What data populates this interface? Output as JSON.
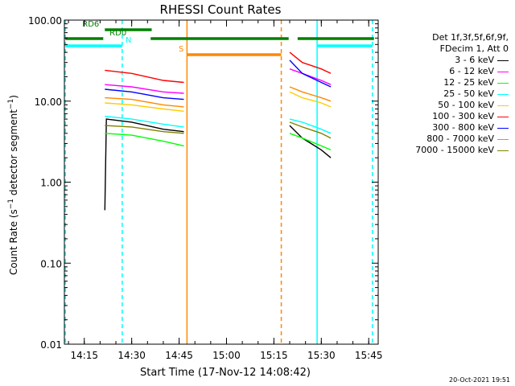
{
  "chart_data": {
    "type": "line",
    "title": "RHESSI Count Rates",
    "xlabel": "Start Time (17-Nov-12 14:08:42)",
    "ylabel": "Count Rate (s⁻¹ detector segment⁻¹)",
    "yscale": "log",
    "ylim": [
      0.01,
      100
    ],
    "xlim": [
      "14:08:42",
      "15:48:00"
    ],
    "x_ticks": [
      "14:15",
      "14:30",
      "14:45",
      "15:00",
      "15:15",
      "15:30",
      "15:45"
    ],
    "y_ticks": [
      "100.00",
      "10.00",
      "1.00",
      "0.10",
      "0.01"
    ],
    "legend_header": [
      "Det 1f,3f,5f,6f,9f,",
      "FDecim 1, Att 0"
    ],
    "legend_position": "right",
    "series": [
      {
        "name": "3 - 6 keV",
        "color": "#000000",
        "segments": [
          [
            [
              "14:21:30",
              0.45
            ],
            [
              "14:22:00",
              6.0
            ],
            [
              "14:30:00",
              5.5
            ],
            [
              "14:40:00",
              4.5
            ],
            [
              "14:46:30",
              4.2
            ]
          ],
          [
            [
              "15:20:00",
              5.0
            ],
            [
              "15:24:00",
              3.5
            ],
            [
              "15:30:00",
              2.5
            ],
            [
              "15:33:00",
              2.0
            ]
          ]
        ]
      },
      {
        "name": "6 - 12 keV",
        "color": "#ff00ff",
        "segments": [
          [
            [
              "14:21:30",
              16
            ],
            [
              "14:30:00",
              15
            ],
            [
              "14:40:00",
              13
            ],
            [
              "14:46:30",
              12.5
            ]
          ],
          [
            [
              "15:20:00",
              25
            ],
            [
              "15:24:00",
              22
            ],
            [
              "15:30:00",
              18
            ],
            [
              "15:33:00",
              16
            ]
          ]
        ]
      },
      {
        "name": "12 - 25 keV",
        "color": "#00ff00",
        "segments": [
          [
            [
              "14:21:30",
              4.0
            ],
            [
              "14:30:00",
              3.8
            ],
            [
              "14:40:00",
              3.2
            ],
            [
              "14:46:30",
              2.8
            ]
          ],
          [
            [
              "15:20:00",
              4.0
            ],
            [
              "15:24:00",
              3.5
            ],
            [
              "15:30:00",
              2.8
            ],
            [
              "15:33:00",
              2.5
            ]
          ]
        ]
      },
      {
        "name": "25 - 50 keV",
        "color": "#00ffff",
        "segments": [
          [
            [
              "14:21:30",
              6.5
            ],
            [
              "14:30:00",
              6.0
            ],
            [
              "14:40:00",
              5.2
            ],
            [
              "14:46:30",
              4.8
            ]
          ],
          [
            [
              "15:20:00",
              6.0
            ],
            [
              "15:24:00",
              5.5
            ],
            [
              "15:30:00",
              4.5
            ],
            [
              "15:33:00",
              4.0
            ]
          ]
        ]
      },
      {
        "name": "50 - 100 keV",
        "color": "#ffcc00",
        "segments": [
          [
            [
              "14:21:30",
              9.5
            ],
            [
              "14:30:00",
              9.0
            ],
            [
              "14:40:00",
              8.0
            ],
            [
              "14:46:30",
              7.5
            ]
          ],
          [
            [
              "15:20:00",
              13
            ],
            [
              "15:24:00",
              11
            ],
            [
              "15:30:00",
              9.5
            ],
            [
              "15:33:00",
              8.5
            ]
          ]
        ]
      },
      {
        "name": "100 - 300 keV",
        "color": "#ff0000",
        "segments": [
          [
            [
              "14:21:30",
              24
            ],
            [
              "14:30:00",
              22
            ],
            [
              "14:40:00",
              18
            ],
            [
              "14:46:30",
              17
            ]
          ],
          [
            [
              "15:20:00",
              40
            ],
            [
              "15:24:00",
              30
            ],
            [
              "15:30:00",
              25
            ],
            [
              "15:33:00",
              22
            ]
          ]
        ]
      },
      {
        "name": "300 - 800 keV",
        "color": "#0000ff",
        "segments": [
          [
            [
              "14:21:30",
              14
            ],
            [
              "14:30:00",
              13
            ],
            [
              "14:40:00",
              11
            ],
            [
              "14:46:30",
              10.5
            ]
          ],
          [
            [
              "15:20:00",
              32
            ],
            [
              "15:24:00",
              22
            ],
            [
              "15:30:00",
              17
            ],
            [
              "15:33:00",
              15
            ]
          ]
        ]
      },
      {
        "name": "800 - 7000 keV",
        "color": "#ff8800",
        "segments": [
          [
            [
              "14:21:30",
              11
            ],
            [
              "14:30:00",
              10.5
            ],
            [
              "14:40:00",
              9.0
            ],
            [
              "14:46:30",
              8.5
            ]
          ],
          [
            [
              "15:20:00",
              15
            ],
            [
              "15:24:00",
              13
            ],
            [
              "15:30:00",
              11
            ],
            [
              "15:33:00",
              10
            ]
          ]
        ]
      },
      {
        "name": "7000 - 15000 keV",
        "color": "#808000",
        "segments": [
          [
            [
              "14:21:30",
              5.0
            ],
            [
              "14:30:00",
              4.8
            ],
            [
              "14:40:00",
              4.2
            ],
            [
              "14:46:30",
              4.0
            ]
          ],
          [
            [
              "15:20:00",
              5.5
            ],
            [
              "15:24:00",
              4.8
            ],
            [
              "15:30:00",
              4.0
            ],
            [
              "15:33:00",
              3.5
            ]
          ]
        ]
      }
    ],
    "vertical_lines": [
      {
        "time": "14:09:00",
        "color": "#00ffff",
        "style": "dashed"
      },
      {
        "time": "14:27:00",
        "color": "#00ffff",
        "style": "dashed"
      },
      {
        "time": "14:47:30",
        "color": "#ff8800",
        "style": "solid"
      },
      {
        "time": "15:17:20",
        "color": "#ff8800",
        "style": "dashed"
      },
      {
        "time": "15:28:40",
        "color": "#00ffff",
        "style": "solid"
      },
      {
        "time": "15:46:10",
        "color": "#00ffff",
        "style": "dashed"
      }
    ],
    "flag_bars": [
      {
        "label": "N",
        "color": "#00ffff",
        "y": 57,
        "ranges": [
          [
            "14:09:00",
            "14:27:00"
          ],
          [
            "15:28:40",
            "15:46:10"
          ]
        ]
      },
      {
        "label": "RD0",
        "color": "#008000",
        "y": 48,
        "ranges": [
          [
            "14:09:00",
            "14:21:00"
          ],
          [
            "14:36:00",
            "15:19:40"
          ],
          [
            "15:22:30",
            "15:46:40"
          ]
        ]
      },
      {
        "label": "RD6",
        "color": "#008000",
        "y": 37,
        "ranges": [
          [
            "14:21:30",
            "14:36:20"
          ]
        ]
      },
      {
        "label": "S",
        "color": "#ff8800",
        "y": 68,
        "ranges": [
          [
            "14:47:30",
            "15:17:20"
          ]
        ]
      }
    ]
  },
  "timestamp": "20-Oct-2021 19:51"
}
